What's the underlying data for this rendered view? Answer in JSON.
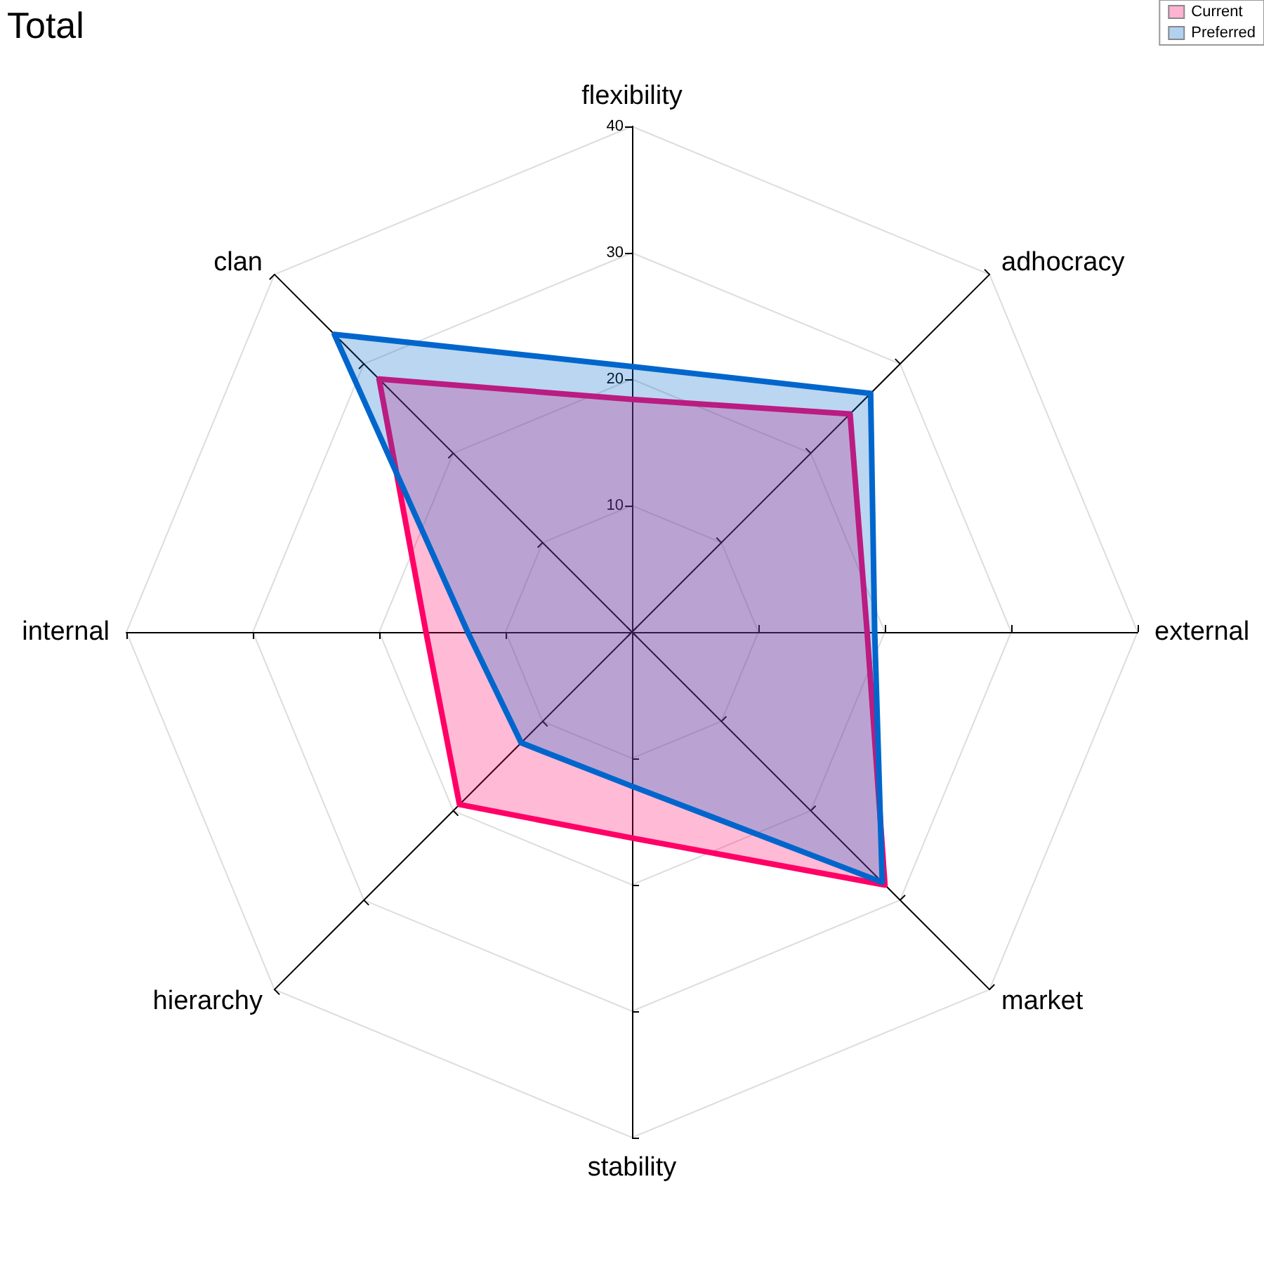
{
  "chart_data": {
    "type": "radar",
    "title": "Total",
    "categories": [
      "flexibility",
      "adhocracy",
      "external",
      "market",
      "stability",
      "hierarchy",
      "internal",
      "clan"
    ],
    "series": [
      {
        "name": "Current",
        "color": "#ff0066",
        "values": [
          18.4,
          24.4,
          18.6,
          28.3,
          16.3,
          19.3,
          16.3,
          28.3
        ]
      },
      {
        "name": "Preferred",
        "color": "#0066cc",
        "values": [
          21,
          26.7,
          19.2,
          28,
          12.2,
          12.4,
          13,
          33.3
        ]
      }
    ],
    "ylim": [
      0,
      40
    ],
    "yticks": [
      10,
      20,
      30,
      40
    ],
    "grid": true,
    "legend": "top right",
    "marker": "none"
  }
}
